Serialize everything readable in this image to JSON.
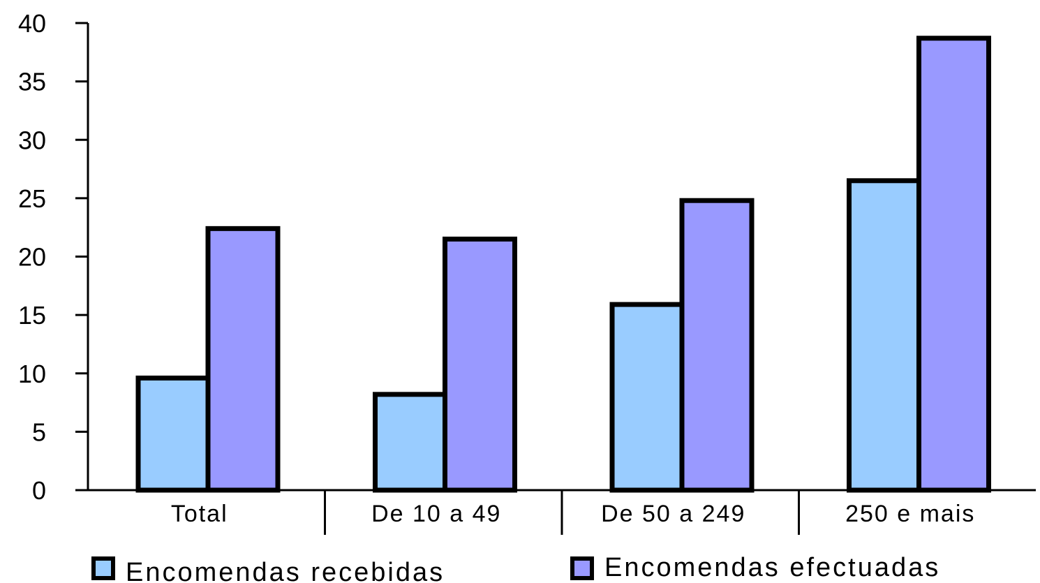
{
  "chart_data": {
    "type": "bar",
    "categories": [
      "Total",
      "De 10 a 49",
      "De 50 a 249",
      "250 e mais"
    ],
    "series": [
      {
        "name": "Encomendas recebidas",
        "values": [
          9.6,
          8.2,
          15.9,
          26.5
        ],
        "color": "#99CCFF"
      },
      {
        "name": "Encomendas efectuadas",
        "values": [
          22.4,
          21.5,
          24.8,
          38.7
        ],
        "color": "#9999FF"
      }
    ],
    "title": "",
    "xlabel": "",
    "ylabel": "",
    "ylim": [
      0,
      40
    ],
    "yticks": [
      0,
      5,
      10,
      15,
      20,
      25,
      30,
      35,
      40
    ],
    "grid": false,
    "legend_position": "bottom",
    "bar_outline_color": "#000000"
  }
}
